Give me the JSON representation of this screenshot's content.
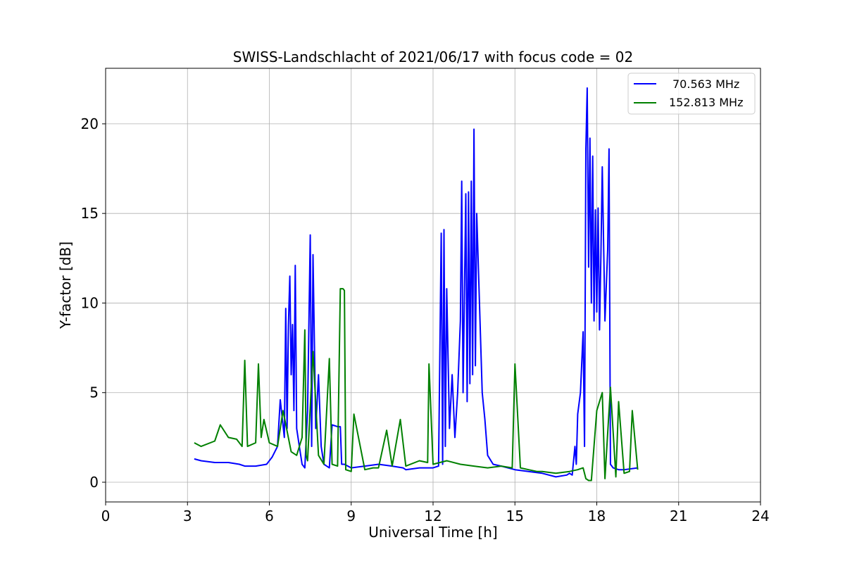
{
  "chart_data": {
    "type": "line",
    "title": "SWISS-Landschlacht of 2021/06/17 with focus code = 02",
    "xlabel": "Universal Time [h]",
    "ylabel": "Y-factor [dB]",
    "xlim": [
      0,
      24
    ],
    "ylim": [
      -1.1,
      23.1
    ],
    "xticks": [
      0,
      3,
      6,
      9,
      12,
      15,
      18,
      21,
      24
    ],
    "yticks": [
      0,
      5,
      10,
      15,
      20
    ],
    "grid": true,
    "legend_position": "top-right",
    "series": [
      {
        "name": "70.563 MHz",
        "color": "#0000ff",
        "x": [
          3.25,
          3.5,
          4.0,
          4.5,
          4.9,
          5.1,
          5.5,
          5.9,
          6.1,
          6.3,
          6.4,
          6.55,
          6.6,
          6.65,
          6.7,
          6.75,
          6.8,
          6.85,
          6.9,
          6.95,
          7.0,
          7.1,
          7.2,
          7.3,
          7.4,
          7.5,
          7.55,
          7.6,
          7.7,
          7.8,
          7.9,
          8.0,
          8.1,
          8.2,
          8.3,
          8.5,
          8.6,
          8.65,
          8.75,
          9.0,
          9.5,
          10.0,
          10.5,
          10.9,
          11.0,
          11.5,
          12.0,
          12.2,
          12.3,
          12.35,
          12.4,
          12.45,
          12.5,
          12.6,
          12.7,
          12.8,
          12.9,
          13.0,
          13.05,
          13.1,
          13.2,
          13.25,
          13.3,
          13.35,
          13.4,
          13.45,
          13.5,
          13.55,
          13.6,
          13.7,
          13.8,
          13.9,
          14.0,
          14.2,
          14.5,
          15.0,
          15.5,
          16.0,
          16.5,
          16.9,
          17.0,
          17.1,
          17.2,
          17.25,
          17.3,
          17.4,
          17.5,
          17.55,
          17.6,
          17.65,
          17.7,
          17.75,
          17.8,
          17.85,
          17.9,
          17.95,
          18.0,
          18.05,
          18.1,
          18.15,
          18.2,
          18.3,
          18.4,
          18.45,
          18.5,
          18.6,
          18.8,
          19.0,
          19.5
        ],
        "values": [
          1.3,
          1.2,
          1.1,
          1.1,
          1.0,
          0.9,
          0.9,
          1.0,
          1.4,
          2.0,
          4.6,
          2.5,
          9.7,
          3.0,
          8.8,
          11.5,
          6.0,
          8.8,
          4.0,
          12.1,
          3.0,
          2.0,
          1.0,
          0.8,
          4.0,
          13.8,
          2.0,
          12.7,
          3.0,
          6.0,
          2.0,
          1.0,
          0.9,
          0.8,
          3.2,
          3.1,
          3.1,
          1.0,
          1.0,
          0.8,
          0.9,
          1.0,
          0.9,
          0.8,
          0.7,
          0.8,
          0.8,
          0.9,
          13.9,
          1.0,
          14.1,
          2.0,
          10.8,
          3.0,
          6.0,
          2.5,
          5.0,
          9.0,
          16.8,
          5.0,
          16.1,
          4.5,
          16.2,
          5.5,
          16.8,
          6.0,
          19.7,
          6.5,
          15.0,
          10.0,
          5.0,
          3.5,
          1.5,
          1.0,
          0.9,
          0.7,
          0.6,
          0.5,
          0.3,
          0.4,
          0.5,
          0.4,
          2.0,
          1.0,
          3.8,
          5.0,
          8.4,
          2.0,
          18.6,
          22.0,
          12.0,
          19.2,
          10.0,
          18.2,
          9.0,
          15.2,
          9.5,
          15.3,
          8.5,
          12.5,
          17.6,
          9.0,
          13.0,
          18.6,
          1.0,
          0.8,
          0.7,
          0.7,
          0.8
        ]
      },
      {
        "name": "152.813 MHz",
        "color": "#008000",
        "x": [
          3.25,
          3.5,
          4.0,
          4.2,
          4.5,
          4.8,
          5.0,
          5.1,
          5.2,
          5.5,
          5.6,
          5.7,
          5.8,
          6.0,
          6.3,
          6.5,
          6.8,
          7.0,
          7.2,
          7.3,
          7.35,
          7.4,
          7.6,
          7.8,
          8.0,
          8.2,
          8.3,
          8.5,
          8.6,
          8.7,
          8.75,
          8.8,
          9.0,
          9.1,
          9.5,
          9.8,
          10.0,
          10.3,
          10.5,
          10.8,
          11.0,
          11.5,
          11.8,
          11.85,
          12.0,
          12.5,
          13.0,
          13.5,
          14.0,
          14.5,
          14.9,
          15.0,
          15.2,
          15.5,
          15.8,
          16.0,
          16.5,
          17.0,
          17.3,
          17.5,
          17.6,
          17.7,
          17.8,
          18.0,
          18.2,
          18.3,
          18.5,
          18.7,
          18.8,
          19.0,
          19.2,
          19.3,
          19.5
        ],
        "values": [
          2.2,
          2.0,
          2.3,
          3.2,
          2.5,
          2.4,
          2.0,
          6.8,
          2.0,
          2.2,
          6.6,
          2.5,
          3.5,
          2.2,
          2.0,
          4.0,
          1.7,
          1.5,
          2.5,
          8.5,
          1.5,
          1.2,
          7.3,
          1.5,
          1.0,
          6.9,
          1.0,
          0.9,
          10.8,
          10.8,
          10.7,
          0.7,
          0.6,
          3.8,
          0.7,
          0.8,
          0.8,
          2.9,
          0.9,
          3.5,
          0.9,
          1.2,
          1.1,
          6.6,
          1.0,
          1.2,
          1.0,
          0.9,
          0.8,
          0.9,
          0.8,
          6.6,
          0.8,
          0.7,
          0.6,
          0.6,
          0.5,
          0.6,
          0.7,
          0.8,
          0.2,
          0.1,
          0.1,
          4.0,
          5.0,
          0.2,
          5.3,
          0.3,
          4.5,
          0.5,
          0.6,
          4.0,
          0.7
        ]
      }
    ]
  }
}
